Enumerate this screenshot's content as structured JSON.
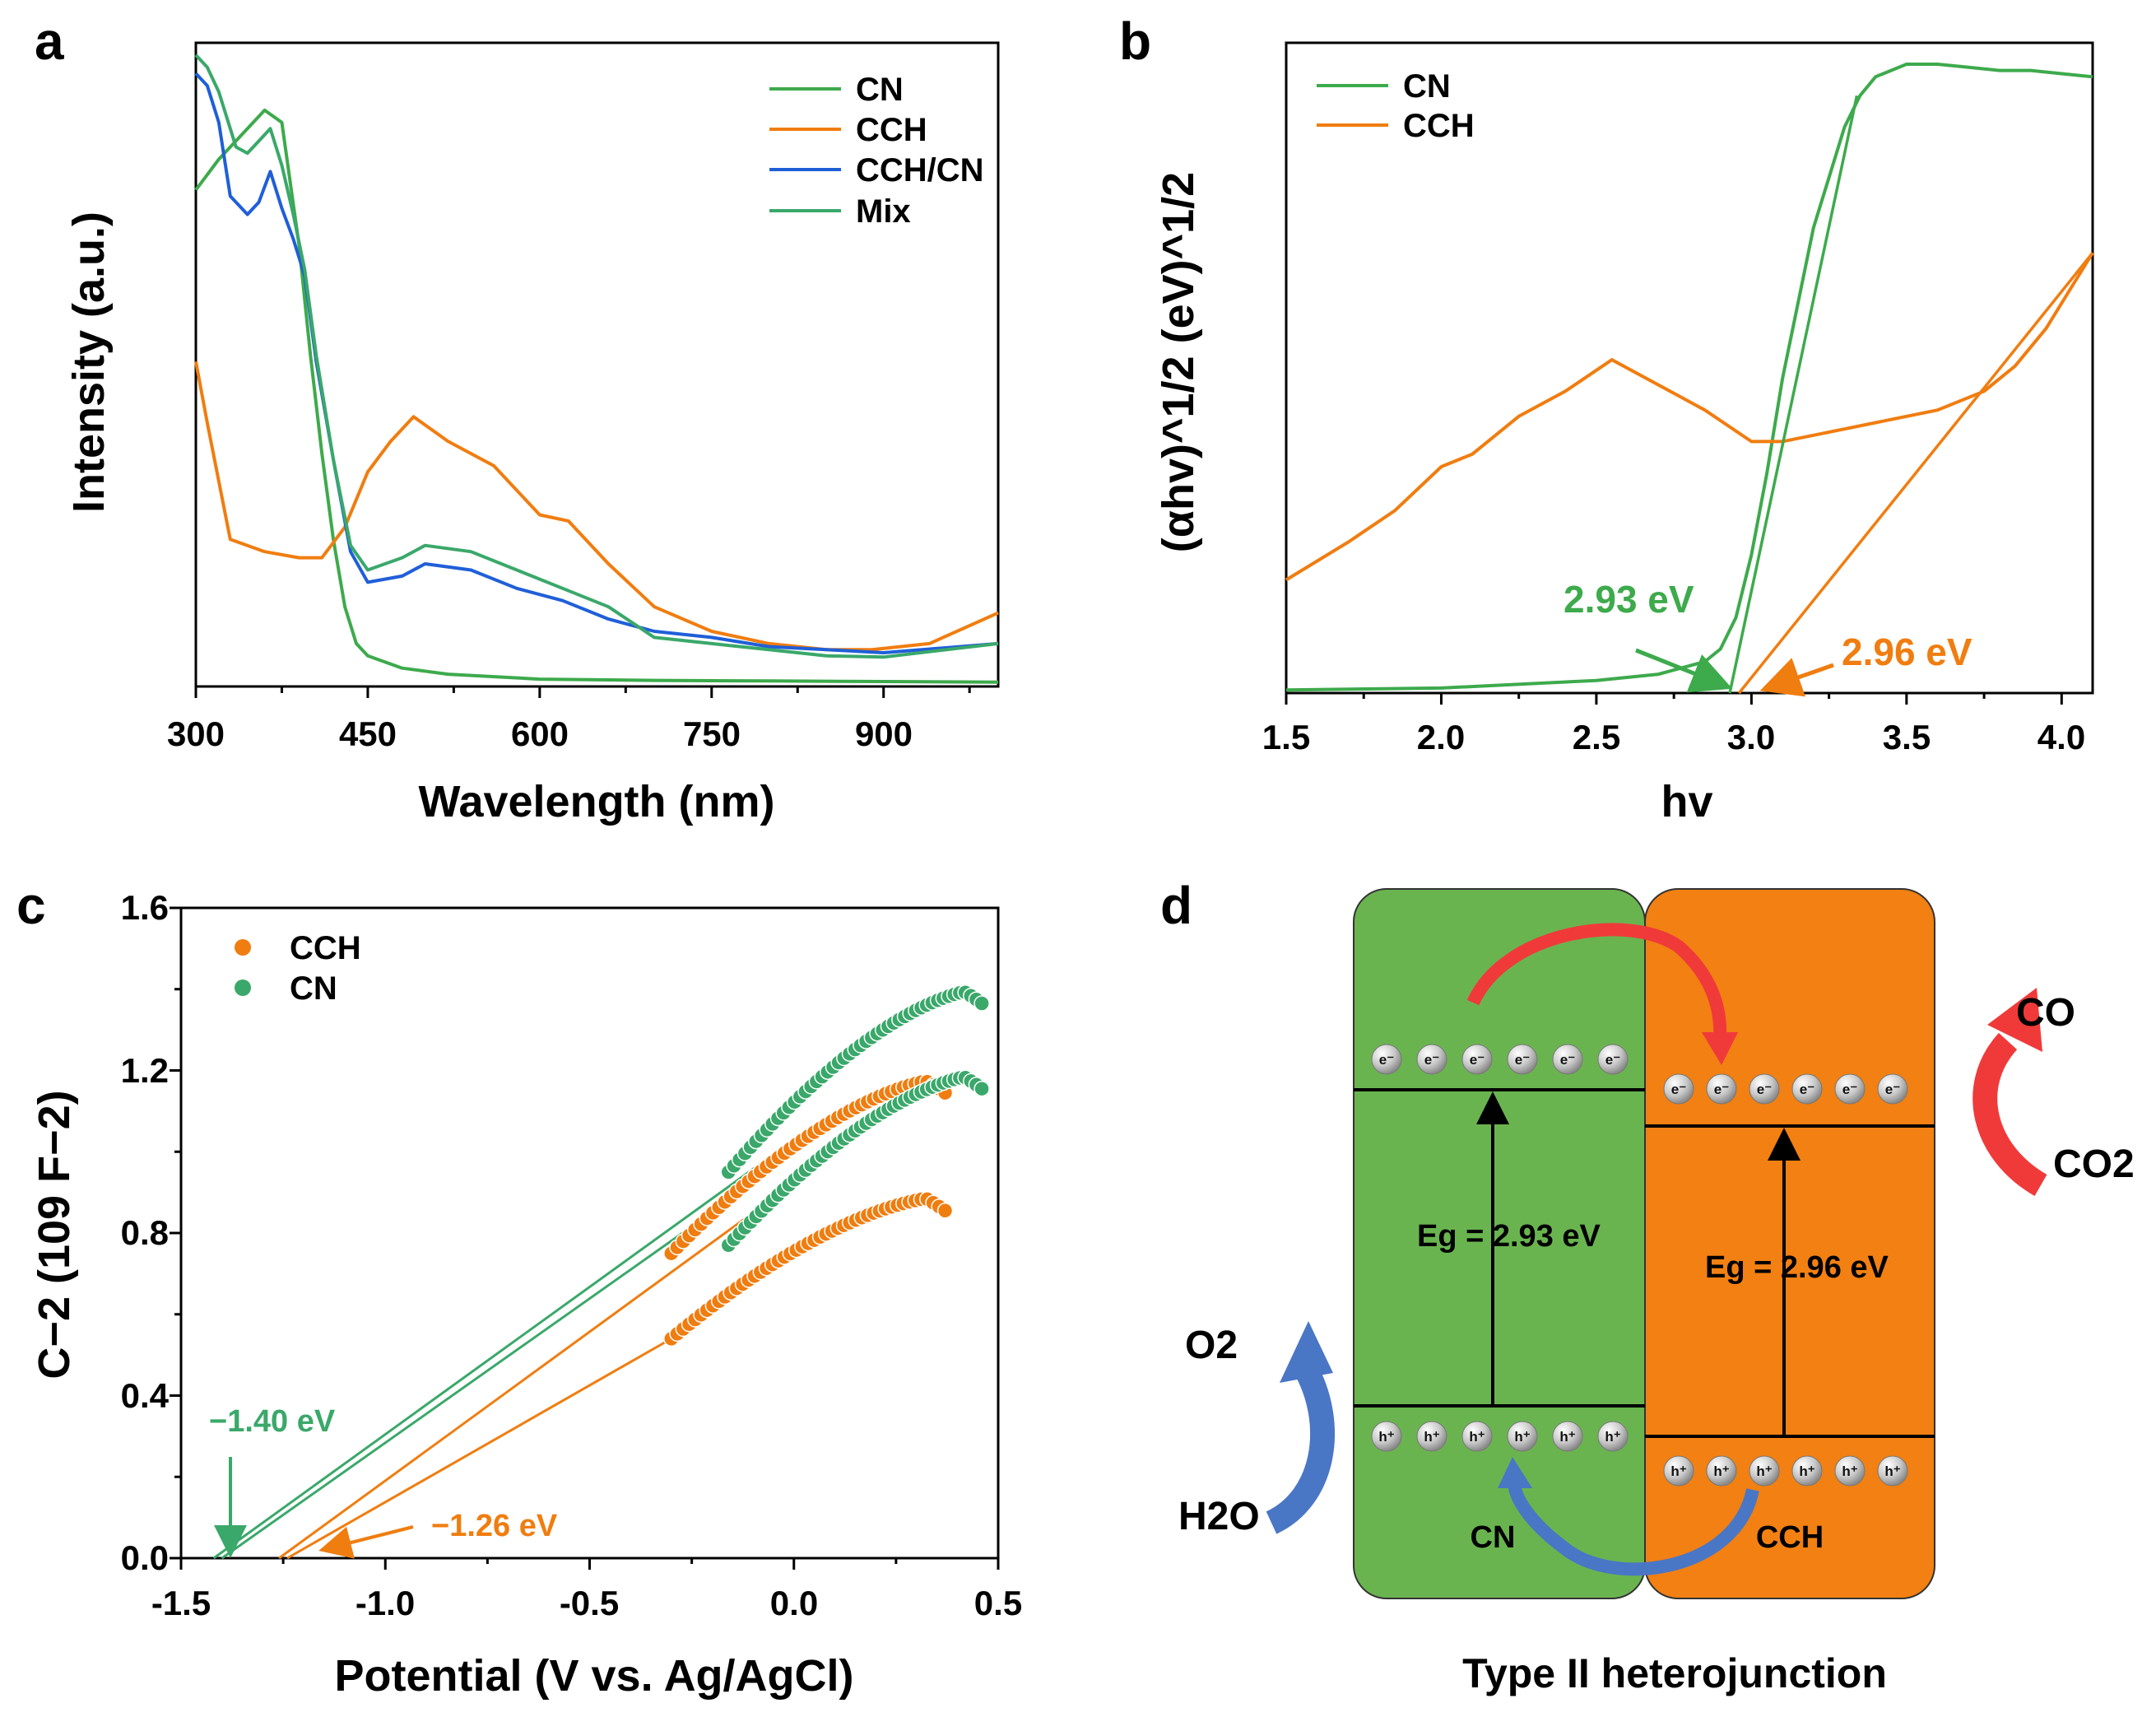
{
  "panels": {
    "a": {
      "letter": "a",
      "xlabel": "Wavelength (nm)",
      "ylabel": "Intensity (a.u.)",
      "xticks": [
        "300",
        "450",
        "600",
        "750",
        "900"
      ],
      "legend": [
        "CN",
        "CCH",
        "CCH/CN",
        "Mix"
      ]
    },
    "b": {
      "letter": "b",
      "xlabel": "hv",
      "ylabel": "(αhv)^1/2 (eV)^1/2",
      "xticks": [
        "1.5",
        "2.0",
        "2.5",
        "3.0",
        "3.5",
        "4.0"
      ],
      "legend": [
        "CN",
        "CCH"
      ],
      "anno_cn": "2.93 eV",
      "anno_cch": "2.96 eV"
    },
    "c": {
      "letter": "c",
      "xlabel": "Potential (V vs. Ag/AgCl)",
      "ylabel": "C−2 (109 F−2)",
      "xticks": [
        "-1.5",
        "-1.0",
        "-0.5",
        "0.0",
        "0.5"
      ],
      "yticks": [
        "0.0",
        "0.4",
        "0.8",
        "1.2",
        "1.6"
      ],
      "legend": [
        "CCH",
        "CN"
      ],
      "anno_cn": "−1.40 eV",
      "anno_cch": "−1.26 eV"
    },
    "d": {
      "letter": "d",
      "caption": "Type II heterojunction",
      "cn_label": "CN",
      "cch_label": "CCH",
      "eg_cn": "Eg = 2.93 eV",
      "eg_cch": "Eg = 2.96 eV",
      "electron": "e⁻",
      "hole": "h⁺",
      "co": "CO",
      "co2": "CO2",
      "o2": "O2",
      "h2o": "H2O"
    }
  },
  "colors": {
    "green": "#3daa4c",
    "teal": "#3aa86a",
    "orange": "#f07d10",
    "blue": "#1f5fd8",
    "red": "#f03a3a",
    "arrow_blue": "#4a76c6",
    "cn_box": "#6ab450",
    "cch_box": "#f28012"
  },
  "chart_data": [
    {
      "type": "line",
      "title": "",
      "xlabel": "Wavelength (nm)",
      "ylabel": "Intensity (a.u.)",
      "xlim": [
        300,
        1000
      ],
      "ylim": [
        0,
        1.05
      ],
      "series": [
        {
          "name": "CN",
          "x": [
            300,
            320,
            340,
            360,
            375,
            390,
            400,
            410,
            420,
            430,
            440,
            450,
            480,
            520,
            600,
            700,
            800,
            900,
            1000
          ],
          "y": [
            0.81,
            0.86,
            0.9,
            0.94,
            0.92,
            0.72,
            0.54,
            0.38,
            0.24,
            0.13,
            0.07,
            0.05,
            0.03,
            0.02,
            0.012,
            0.01,
            0.009,
            0.008,
            0.007
          ]
        },
        {
          "name": "CCH",
          "x": [
            300,
            310,
            330,
            360,
            390,
            410,
            430,
            450,
            470,
            490,
            520,
            560,
            600,
            625,
            660,
            700,
            750,
            800,
            850,
            890,
            940,
            1000
          ],
          "y": [
            0.53,
            0.43,
            0.24,
            0.22,
            0.21,
            0.21,
            0.26,
            0.35,
            0.4,
            0.44,
            0.4,
            0.36,
            0.28,
            0.27,
            0.2,
            0.13,
            0.09,
            0.07,
            0.06,
            0.06,
            0.07,
            0.12
          ]
        },
        {
          "name": "CCH/CN",
          "x": [
            300,
            310,
            320,
            330,
            345,
            355,
            365,
            375,
            385,
            395,
            405,
            420,
            435,
            450,
            480,
            500,
            540,
            580,
            620,
            660,
            700,
            750,
            800,
            850,
            900,
            1000
          ],
          "y": [
            1.0,
            0.98,
            0.92,
            0.8,
            0.77,
            0.79,
            0.84,
            0.78,
            0.73,
            0.67,
            0.53,
            0.37,
            0.22,
            0.17,
            0.18,
            0.2,
            0.19,
            0.16,
            0.14,
            0.11,
            0.09,
            0.08,
            0.065,
            0.06,
            0.055,
            0.07
          ]
        },
        {
          "name": "Mix",
          "x": [
            300,
            310,
            320,
            335,
            345,
            355,
            365,
            375,
            385,
            395,
            405,
            420,
            435,
            450,
            480,
            500,
            540,
            580,
            620,
            660,
            700,
            750,
            800,
            850,
            900,
            1000
          ],
          "y": [
            1.03,
            1.01,
            0.97,
            0.88,
            0.87,
            0.89,
            0.91,
            0.85,
            0.77,
            0.68,
            0.54,
            0.37,
            0.23,
            0.19,
            0.21,
            0.23,
            0.22,
            0.19,
            0.16,
            0.13,
            0.08,
            0.07,
            0.06,
            0.05,
            0.048,
            0.07
          ]
        }
      ]
    },
    {
      "type": "line",
      "title": "",
      "xlabel": "hv",
      "ylabel": "(αhv)^1/2 (eV)^1/2",
      "xlim": [
        1.5,
        4.1
      ],
      "ylim": [
        0,
        1.0
      ],
      "series": [
        {
          "name": "CN",
          "x": [
            1.5,
            2.0,
            2.5,
            2.7,
            2.85,
            2.9,
            2.95,
            3.0,
            3.05,
            3.1,
            3.2,
            3.3,
            3.35,
            3.4,
            3.5,
            3.6,
            3.7,
            3.8,
            3.9,
            4.0,
            4.1
          ],
          "y": [
            0.005,
            0.008,
            0.02,
            0.03,
            0.05,
            0.07,
            0.12,
            0.22,
            0.35,
            0.5,
            0.74,
            0.9,
            0.95,
            0.98,
            1.0,
            1.0,
            0.995,
            0.99,
            0.99,
            0.985,
            0.98
          ]
        },
        {
          "name": "CCH",
          "x": [
            1.5,
            1.7,
            1.85,
            2.0,
            2.1,
            2.25,
            2.4,
            2.55,
            2.7,
            2.85,
            3.0,
            3.1,
            3.2,
            3.4,
            3.6,
            3.75,
            3.85,
            3.95,
            4.1
          ],
          "y": [
            0.18,
            0.24,
            0.29,
            0.36,
            0.38,
            0.44,
            0.48,
            0.53,
            0.49,
            0.45,
            0.4,
            0.4,
            0.41,
            0.43,
            0.45,
            0.48,
            0.52,
            0.58,
            0.7
          ]
        },
        {
          "name": "CN tangent",
          "x": [
            2.93,
            3.34
          ],
          "y": [
            0.0,
            0.95
          ]
        },
        {
          "name": "CCH tangent",
          "x": [
            2.96,
            4.1
          ],
          "y": [
            0.0,
            0.7
          ]
        }
      ],
      "annotations": [
        {
          "text": "2.93 eV",
          "x": 2.93
        },
        {
          "text": "2.96 eV",
          "x": 2.96
        }
      ]
    },
    {
      "type": "scatter",
      "title": "",
      "xlabel": "Potential (V vs. Ag/AgCl)",
      "ylabel": "C−2 (109 F−2)",
      "xlim": [
        -1.5,
        0.5
      ],
      "ylim": [
        0,
        1.6
      ],
      "series": [
        {
          "name": "CCH (upper)",
          "x0": -0.3,
          "x1": 0.37,
          "y0": 0.75,
          "y1": 1.18
        },
        {
          "name": "CCH (lower)",
          "x0": -0.3,
          "x1": 0.37,
          "y0": 0.54,
          "y1": 0.89
        },
        {
          "name": "CN (upper)",
          "x0": -0.16,
          "x1": 0.46,
          "y0": 0.95,
          "y1": 1.4
        },
        {
          "name": "CN (lower)",
          "x0": -0.16,
          "x1": 0.46,
          "y0": 0.77,
          "y1": 1.19
        },
        {
          "name": "CN fit 1",
          "x": [
            -1.42,
            0.0
          ],
          "y": [
            0.0,
            1.03
          ]
        },
        {
          "name": "CN fit 2",
          "x": [
            -1.4,
            -0.16
          ],
          "y": [
            0.0,
            0.88
          ]
        },
        {
          "name": "CCH fit 1",
          "x": [
            -1.26,
            0.05
          ],
          "y": [
            0.0,
            0.96
          ]
        },
        {
          "name": "CCH fit 2",
          "x": [
            -1.24,
            -0.3
          ],
          "y": [
            0.0,
            0.54
          ]
        }
      ],
      "annotations": [
        {
          "text": "−1.40 eV",
          "x": -1.4
        },
        {
          "text": "−1.26 eV",
          "x": -1.26
        }
      ]
    }
  ]
}
